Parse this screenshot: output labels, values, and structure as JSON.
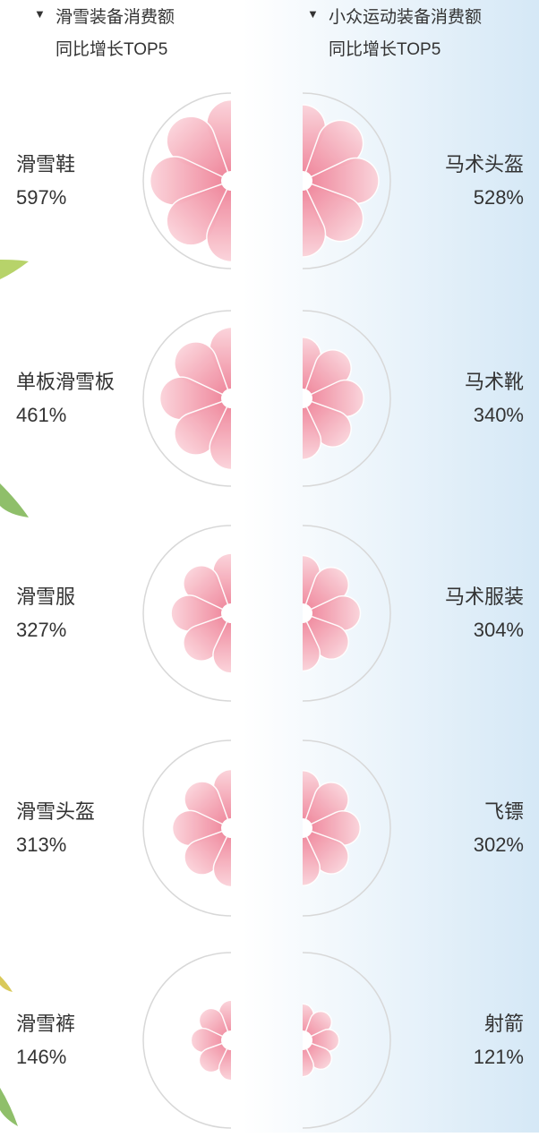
{
  "chart_data": [
    {
      "type": "petal",
      "title": [
        "滑雪装备消费额",
        "同比增长TOP5"
      ],
      "categories": [
        "滑雪鞋",
        "单板滑雪板",
        "滑雪服",
        "滑雪头盔",
        "滑雪裤"
      ],
      "values": [
        597,
        461,
        327,
        313,
        146
      ],
      "value_labels": [
        "597%",
        "461%",
        "327%",
        "313%",
        "146%"
      ],
      "color": "#ef8096"
    },
    {
      "type": "petal",
      "title": [
        "小众运动装备消费额",
        "同比增长TOP5"
      ],
      "categories": [
        "马术头盔",
        "马术靴",
        "马术服装",
        "飞镖",
        "射箭"
      ],
      "values": [
        528,
        340,
        304,
        302,
        121
      ],
      "value_labels": [
        "528%",
        "340%",
        "304%",
        "302%",
        "121%"
      ],
      "color": "#ef8096"
    }
  ]
}
